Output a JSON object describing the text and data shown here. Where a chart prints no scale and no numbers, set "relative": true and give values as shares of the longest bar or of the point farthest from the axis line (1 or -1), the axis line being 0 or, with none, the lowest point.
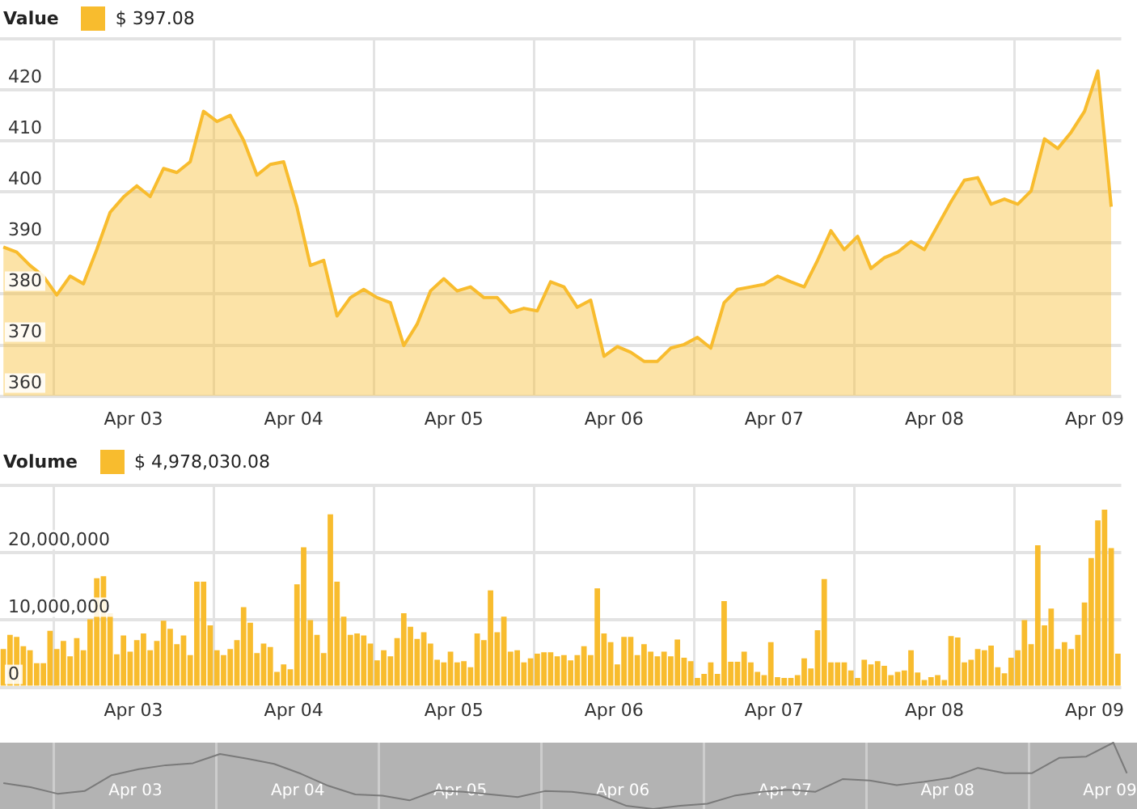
{
  "chart_data": [
    {
      "type": "area",
      "legend_title": "Value",
      "legend": "top left",
      "grid": true,
      "x": [
        "--04-02T16:30",
        "--04-02T18:30",
        "--04-02T20:30",
        "--04-02T22:30",
        "--04-03T00:30",
        "--04-03T02:30",
        "--04-03T04:30",
        "--04-03T06:30",
        "--04-03T08:30",
        "--04-03T10:30",
        "--04-03T12:30",
        "--04-03T14:30",
        "--04-03T16:30",
        "--04-03T18:30",
        "--04-03T20:30",
        "--04-03T22:30",
        "--04-04T00:30",
        "--04-04T02:30",
        "--04-04T04:30",
        "--04-04T06:30",
        "--04-04T08:30",
        "--04-04T10:30",
        "--04-04T12:30",
        "--04-04T14:30",
        "--04-04T16:30",
        "--04-04T18:30",
        "--04-04T20:30",
        "--04-04T22:30",
        "--04-05T00:30",
        "--04-05T02:30",
        "--04-05T04:30",
        "--04-05T06:30",
        "--04-05T08:30",
        "--04-05T10:30",
        "--04-05T12:30",
        "--04-05T14:30",
        "--04-05T16:30",
        "--04-05T18:30",
        "--04-05T20:30",
        "--04-05T22:30",
        "--04-06T00:30",
        "--04-06T02:30",
        "--04-06T04:30",
        "--04-06T06:30",
        "--04-06T08:30",
        "--04-06T10:30",
        "--04-06T12:30",
        "--04-06T14:30",
        "--04-06T16:30",
        "--04-06T18:30",
        "--04-06T20:30",
        "--04-06T22:30",
        "--04-07T00:30",
        "--04-07T02:30",
        "--04-07T04:30",
        "--04-07T06:30",
        "--04-07T08:30",
        "--04-07T10:30",
        "--04-07T12:30",
        "--04-07T14:30",
        "--04-07T16:30",
        "--04-07T18:30",
        "--04-07T20:30",
        "--04-07T22:30",
        "--04-08T00:30",
        "--04-08T02:30",
        "--04-08T04:30",
        "--04-08T06:30",
        "--04-08T08:30",
        "--04-08T10:30",
        "--04-08T12:30",
        "--04-08T14:30",
        "--04-08T16:30",
        "--04-08T18:30",
        "--04-08T20:30",
        "--04-08T22:30",
        "--04-09T00:30",
        "--04-09T02:30",
        "--04-09T04:30",
        "--04-09T06:30",
        "--04-09T08:30",
        "--04-09T10:30",
        "--04-09T12:30",
        "--04-09T14:30"
      ],
      "series": [
        {
          "name": "$ 397.08",
          "color": "#f8bc2e",
          "values": [
            389.2,
            388.2,
            385.6,
            383.5,
            379.8,
            383.5,
            382,
            388.7,
            396,
            399,
            401.2,
            399.1,
            404.6,
            403.8,
            405.9,
            415.8,
            413.8,
            415,
            410.1,
            403.3,
            405.4,
            405.9,
            397,
            385.6,
            386.6,
            375.7,
            379.3,
            380.9,
            379.3,
            378.3,
            369.9,
            374.1,
            380.6,
            383,
            380.6,
            381.4,
            379.3,
            379.3,
            376.4,
            377.2,
            376.7,
            382.4,
            381.4,
            377.4,
            378.8,
            367.8,
            369.7,
            368.6,
            366.8,
            366.8,
            369.4,
            370.1,
            371.5,
            369.4,
            378.3,
            380.9,
            381.4,
            381.9,
            383.5,
            382.4,
            381.4,
            386.6,
            392.4,
            388.7,
            391.3,
            385,
            387.1,
            388.2,
            390.3,
            388.7,
            393.4,
            398.1,
            402.3,
            402.8,
            397.6,
            398.6,
            397.6,
            400.2,
            410.4,
            408.5,
            411.7,
            415.8,
            423.7,
            397.1
          ]
        }
      ],
      "xlim": [
        "--04-02T16:00",
        "--04-09T16:00"
      ],
      "xticks": [
        {
          "value": "--04-03",
          "label": null
        },
        {
          "value": "--04-03T12:00",
          "label": "Apr 03"
        },
        {
          "value": "--04-04",
          "label": null
        },
        {
          "value": "--04-04T12:00",
          "label": "Apr 04"
        },
        {
          "value": "--04-05",
          "label": null
        },
        {
          "value": "--04-05T12:00",
          "label": "Apr 05"
        },
        {
          "value": "--04-06",
          "label": null
        },
        {
          "value": "--04-06T12:00",
          "label": "Apr 06"
        },
        {
          "value": "--04-07",
          "label": null
        },
        {
          "value": "--04-07T12:00",
          "label": "Apr 07"
        },
        {
          "value": "--04-08",
          "label": null
        },
        {
          "value": "--04-08T12:00",
          "label": "Apr 08"
        },
        {
          "value": "--04-09",
          "label": null
        },
        {
          "value": "--04-09T12:00",
          "label": "Apr 09"
        }
      ],
      "ylim": [
        360,
        430
      ],
      "yticks": [
        360,
        370,
        380,
        390,
        400,
        410,
        420,
        {
          "value": 430,
          "label": null
        }
      ]
    },
    {
      "type": "bar",
      "legend_title": "Volume",
      "legend": "top left",
      "grid": true,
      "x": [
        "--04-02T16:30",
        "--04-02T17:30",
        "--04-02T18:30",
        "--04-02T19:30",
        "--04-02T20:30",
        "--04-02T21:30",
        "--04-02T22:30",
        "--04-02T23:30",
        "--04-03T00:30",
        "--04-03T01:30",
        "--04-03T02:30",
        "--04-03T03:30",
        "--04-03T04:30",
        "--04-03T05:30",
        "--04-03T06:30",
        "--04-03T07:30",
        "--04-03T08:30",
        "--04-03T09:30",
        "--04-03T10:30",
        "--04-03T11:30",
        "--04-03T12:30",
        "--04-03T13:30",
        "--04-03T14:30",
        "--04-03T15:30",
        "--04-03T16:30",
        "--04-03T17:30",
        "--04-03T18:30",
        "--04-03T19:30",
        "--04-03T20:30",
        "--04-03T21:30",
        "--04-03T22:30",
        "--04-03T23:30",
        "--04-04T00:30",
        "--04-04T01:30",
        "--04-04T02:30",
        "--04-04T03:30",
        "--04-04T04:30",
        "--04-04T05:30",
        "--04-04T06:30",
        "--04-04T07:30",
        "--04-04T08:30",
        "--04-04T09:30",
        "--04-04T10:30",
        "--04-04T11:30",
        "--04-04T12:30",
        "--04-04T13:30",
        "--04-04T14:30",
        "--04-04T15:30",
        "--04-04T16:30",
        "--04-04T17:30",
        "--04-04T18:30",
        "--04-04T19:30",
        "--04-04T20:30",
        "--04-04T21:30",
        "--04-04T22:30",
        "--04-04T23:30",
        "--04-05T00:30",
        "--04-05T01:30",
        "--04-05T02:30",
        "--04-05T03:30",
        "--04-05T04:30",
        "--04-05T05:30",
        "--04-05T06:30",
        "--04-05T07:30",
        "--04-05T08:30",
        "--04-05T09:30",
        "--04-05T10:30",
        "--04-05T11:30",
        "--04-05T12:30",
        "--04-05T13:30",
        "--04-05T14:30",
        "--04-05T15:30",
        "--04-05T16:30",
        "--04-05T17:30",
        "--04-05T18:30",
        "--04-05T19:30",
        "--04-05T20:30",
        "--04-05T21:30",
        "--04-05T22:30",
        "--04-05T23:30",
        "--04-06T00:30",
        "--04-06T01:30",
        "--04-06T02:30",
        "--04-06T03:30",
        "--04-06T04:30",
        "--04-06T05:30",
        "--04-06T06:30",
        "--04-06T07:30",
        "--04-06T08:30",
        "--04-06T09:30",
        "--04-06T10:30",
        "--04-06T11:30",
        "--04-06T12:30",
        "--04-06T13:30",
        "--04-06T14:30",
        "--04-06T15:30",
        "--04-06T16:30",
        "--04-06T17:30",
        "--04-06T18:30",
        "--04-06T19:30",
        "--04-06T20:30",
        "--04-06T21:30",
        "--04-06T22:30",
        "--04-06T23:30",
        "--04-07T00:30",
        "--04-07T01:30",
        "--04-07T02:30",
        "--04-07T03:30",
        "--04-07T04:30",
        "--04-07T05:30",
        "--04-07T06:30",
        "--04-07T07:30",
        "--04-07T08:30",
        "--04-07T09:30",
        "--04-07T10:30",
        "--04-07T11:30",
        "--04-07T12:30",
        "--04-07T13:30",
        "--04-07T14:30",
        "--04-07T15:30",
        "--04-07T16:30",
        "--04-07T17:30",
        "--04-07T18:30",
        "--04-07T19:30",
        "--04-07T20:30",
        "--04-07T21:30",
        "--04-07T22:30",
        "--04-07T23:30",
        "--04-08T00:30",
        "--04-08T01:30",
        "--04-08T02:30",
        "--04-08T03:30",
        "--04-08T04:30",
        "--04-08T05:30",
        "--04-08T06:30",
        "--04-08T07:30",
        "--04-08T08:30",
        "--04-08T09:30",
        "--04-08T10:30",
        "--04-08T11:30",
        "--04-08T12:30",
        "--04-08T13:30",
        "--04-08T14:30",
        "--04-08T15:30",
        "--04-08T16:30",
        "--04-08T17:30",
        "--04-08T18:30",
        "--04-08T19:30",
        "--04-08T20:30",
        "--04-08T21:30",
        "--04-08T22:30",
        "--04-08T23:30",
        "--04-09T00:30",
        "--04-09T01:30",
        "--04-09T02:30",
        "--04-09T03:30",
        "--04-09T04:30",
        "--04-09T05:30",
        "--04-09T06:30",
        "--04-09T07:30",
        "--04-09T08:30",
        "--04-09T09:30",
        "--04-09T10:30",
        "--04-09T11:30",
        "--04-09T12:30",
        "--04-09T13:30",
        "--04-09T14:30",
        "--04-09T15:30"
      ],
      "series": [
        {
          "name": "$ 4,978,030.08",
          "color": "#f8bc2e",
          "values": [
            5700000,
            7800000,
            7500000,
            6100000,
            5500000,
            3600000,
            3600000,
            8400000,
            5700000,
            6900000,
            4600000,
            7300000,
            5500000,
            10100000,
            16200000,
            16500000,
            11000000,
            4900000,
            7700000,
            5300000,
            7000000,
            8000000,
            5500000,
            6900000,
            9900000,
            8700000,
            6400000,
            7700000,
            4800000,
            15700000,
            15700000,
            9200000,
            5500000,
            4800000,
            5700000,
            7000000,
            11900000,
            9600000,
            5100000,
            6500000,
            6000000,
            2300000,
            3400000,
            2700000,
            15300000,
            20800000,
            10000000,
            7800000,
            5100000,
            25700000,
            15700000,
            10500000,
            7800000,
            8000000,
            7700000,
            6500000,
            4000000,
            5500000,
            4600000,
            7300000,
            11000000,
            9000000,
            7200000,
            8200000,
            6500000,
            4100000,
            3700000,
            5300000,
            3700000,
            3900000,
            3000000,
            8000000,
            7000000,
            14400000,
            8200000,
            10500000,
            5300000,
            5500000,
            3700000,
            4300000,
            5000000,
            5200000,
            5200000,
            4600000,
            4800000,
            4000000,
            4800000,
            6100000,
            4800000,
            14700000,
            8000000,
            6700000,
            3400000,
            7500000,
            7500000,
            4800000,
            6400000,
            5300000,
            4600000,
            5300000,
            4600000,
            7100000,
            4400000,
            3900000,
            1400000,
            2000000,
            3700000,
            2000000,
            12800000,
            3800000,
            3800000,
            5300000,
            3700000,
            2300000,
            1800000,
            6700000,
            1500000,
            1400000,
            1400000,
            1800000,
            4300000,
            2800000,
            8500000,
            16100000,
            3700000,
            3700000,
            3700000,
            2500000,
            1400000,
            4100000,
            3400000,
            3900000,
            3200000,
            1800000,
            2300000,
            2500000,
            5500000,
            2200000,
            1100000,
            1500000,
            1800000,
            1100000,
            7600000,
            7400000,
            3700000,
            4100000,
            5700000,
            5500000,
            6200000,
            3000000,
            2100000,
            4400000,
            5500000,
            10000000,
            6400000,
            21100000,
            9200000,
            11700000,
            5700000,
            6700000,
            5700000,
            7800000,
            12600000,
            19200000,
            24800000,
            26400000,
            20700000,
            5000000
          ]
        }
      ],
      "xlim": [
        "--04-02T16:00",
        "--04-09T16:00"
      ],
      "xticks": [
        {
          "value": "--04-03",
          "label": null
        },
        {
          "value": "--04-03T12:00",
          "label": "Apr 03"
        },
        {
          "value": "--04-04",
          "label": null
        },
        {
          "value": "--04-04T12:00",
          "label": "Apr 04"
        },
        {
          "value": "--04-05",
          "label": null
        },
        {
          "value": "--04-05T12:00",
          "label": "Apr 05"
        },
        {
          "value": "--04-06",
          "label": null
        },
        {
          "value": "--04-06T12:00",
          "label": "Apr 06"
        },
        {
          "value": "--04-07",
          "label": null
        },
        {
          "value": "--04-07T12:00",
          "label": "Apr 07"
        },
        {
          "value": "--04-08",
          "label": null
        },
        {
          "value": "--04-08T12:00",
          "label": "Apr 08"
        },
        {
          "value": "--04-09",
          "label": null
        },
        {
          "value": "--04-09T12:00",
          "label": "Apr 09"
        }
      ],
      "ylim": [
        0,
        30000000
      ],
      "yticks": [
        0,
        {
          "value": 10000000,
          "label": "10,000,000"
        },
        {
          "value": 20000000,
          "label": "20,000,000"
        },
        {
          "value": 30000000,
          "label": null
        }
      ]
    },
    {
      "type": "line",
      "relative": true,
      "grid": "x",
      "x": [
        "--04-02T16:30",
        "--04-02T20:30",
        "--04-03T00:30",
        "--04-03T04:30",
        "--04-03T08:30",
        "--04-03T12:30",
        "--04-03T16:30",
        "--04-03T20:30",
        "--04-04T00:30",
        "--04-04T04:30",
        "--04-04T08:30",
        "--04-04T12:30",
        "--04-04T16:30",
        "--04-04T20:30",
        "--04-05T00:30",
        "--04-05T04:30",
        "--04-05T08:30",
        "--04-05T12:30",
        "--04-05T16:30",
        "--04-05T20:30",
        "--04-06T00:30",
        "--04-06T04:30",
        "--04-06T08:30",
        "--04-06T12:30",
        "--04-06T16:30",
        "--04-06T20:30",
        "--04-07T00:30",
        "--04-07T04:30",
        "--04-07T08:30",
        "--04-07T12:30",
        "--04-07T16:30",
        "--04-07T20:30",
        "--04-08T00:30",
        "--04-08T04:30",
        "--04-08T08:30",
        "--04-08T12:30",
        "--04-08T16:30",
        "--04-08T20:30",
        "--04-09T00:30",
        "--04-09T04:30",
        "--04-09T08:30",
        "--04-09T12:30",
        "--04-09T14:30"
      ],
      "series": [
        {
          "color": "#7a7a7a",
          "values": [
            0.39,
            0.33,
            0.23,
            0.27,
            0.51,
            0.6,
            0.66,
            0.69,
            0.83,
            0.76,
            0.68,
            0.53,
            0.35,
            0.22,
            0.2,
            0.13,
            0.28,
            0.26,
            0.22,
            0.18,
            0.27,
            0.26,
            0.21,
            0.05,
            0,
            0.05,
            0.08,
            0.2,
            0.26,
            0.29,
            0.26,
            0.45,
            0.43,
            0.36,
            0.41,
            0.47,
            0.62,
            0.54,
            0.54,
            0.77,
            0.79,
            1,
            0.54
          ]
        }
      ],
      "xlim": [
        "--04-02T16:00",
        "--04-09T16:00"
      ],
      "xticks": [
        {
          "value": "--04-03",
          "label": null
        },
        {
          "value": "--04-03T12:00",
          "label": "Apr 03"
        },
        {
          "value": "--04-04",
          "label": null
        },
        {
          "value": "--04-04T12:00",
          "label": "Apr 04"
        },
        {
          "value": "--04-05",
          "label": null
        },
        {
          "value": "--04-05T12:00",
          "label": "Apr 05"
        },
        {
          "value": "--04-06",
          "label": null
        },
        {
          "value": "--04-06T12:00",
          "label": "Apr 06"
        },
        {
          "value": "--04-07",
          "label": null
        },
        {
          "value": "--04-07T12:00",
          "label": "Apr 07"
        },
        {
          "value": "--04-08",
          "label": null
        },
        {
          "value": "--04-08T12:00",
          "label": "Apr 08"
        },
        {
          "value": "--04-09",
          "label": null
        },
        {
          "value": "--04-09T12:00",
          "label": "Apr 09"
        }
      ]
    }
  ]
}
